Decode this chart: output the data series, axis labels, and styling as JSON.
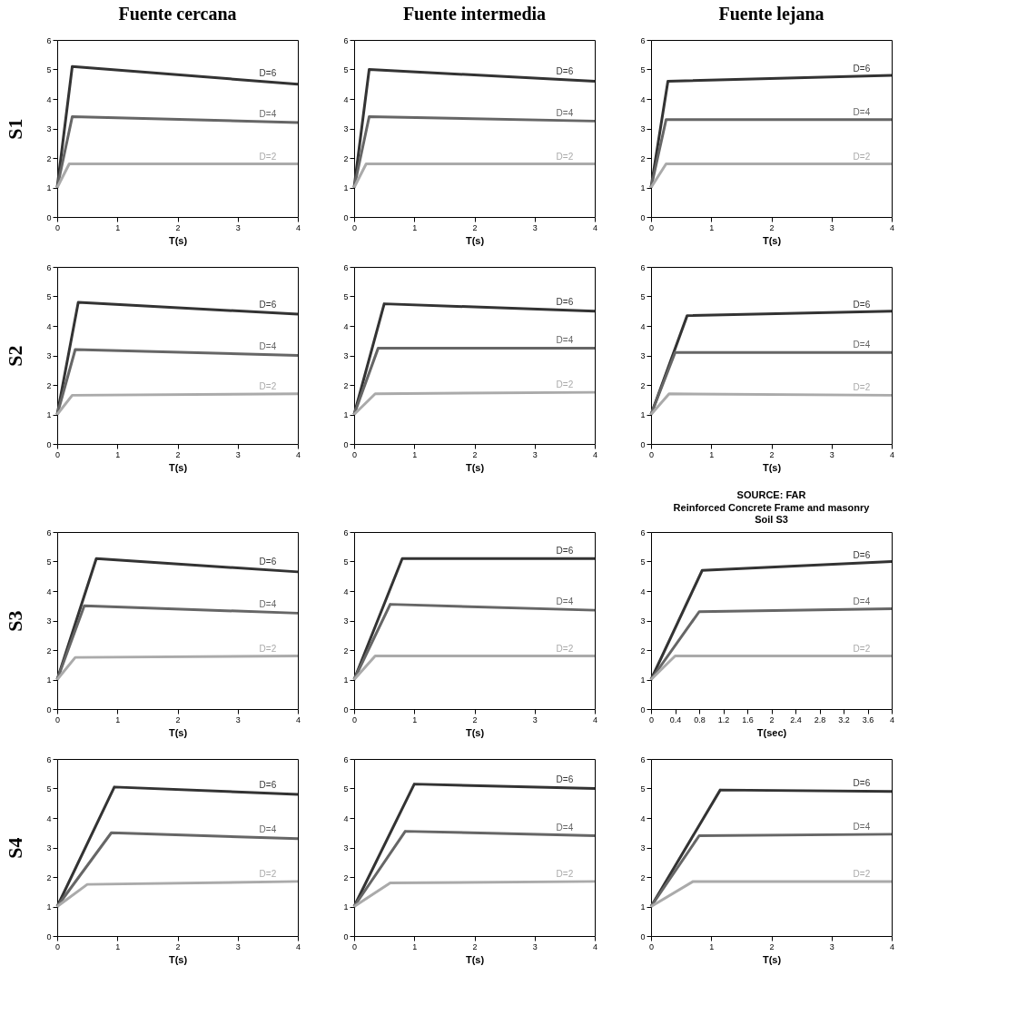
{
  "chart_data": [
    {
      "type": "line",
      "title": "Fuente cercana",
      "ylabel": "S1",
      "xlabel": "T(s)",
      "xlim": [
        0,
        4
      ],
      "ylim": [
        0,
        6
      ],
      "xticks": [
        0,
        1,
        2,
        3,
        4
      ],
      "yticks": [
        0,
        1,
        2,
        3,
        4,
        5,
        6
      ],
      "grid": false,
      "line_style": "solid",
      "series": [
        {
          "name": "D=6",
          "color": "#333333",
          "x": [
            0,
            0.25,
            4
          ],
          "values": [
            1,
            5.1,
            4.5
          ]
        },
        {
          "name": "D=4",
          "color": "#666666",
          "x": [
            0,
            0.25,
            4
          ],
          "values": [
            1,
            3.4,
            3.2
          ]
        },
        {
          "name": "D=2",
          "color": "#aaaaaa",
          "x": [
            0,
            0.2,
            4
          ],
          "values": [
            1,
            1.8,
            1.8
          ]
        }
      ]
    },
    {
      "type": "line",
      "title": "Fuente intermedia",
      "xlabel": "T(s)",
      "xlim": [
        0,
        4
      ],
      "ylim": [
        0,
        6
      ],
      "xticks": [
        0,
        1,
        2,
        3,
        4
      ],
      "yticks": [
        0,
        1,
        2,
        3,
        4,
        5,
        6
      ],
      "grid": false,
      "line_style": "solid",
      "series": [
        {
          "name": "D=6",
          "color": "#333333",
          "x": [
            0,
            0.25,
            4
          ],
          "values": [
            1,
            5.0,
            4.6
          ]
        },
        {
          "name": "D=4",
          "color": "#666666",
          "x": [
            0,
            0.25,
            4
          ],
          "values": [
            1,
            3.4,
            3.25
          ]
        },
        {
          "name": "D=2",
          "color": "#aaaaaa",
          "x": [
            0,
            0.2,
            4
          ],
          "values": [
            1,
            1.8,
            1.8
          ]
        }
      ]
    },
    {
      "type": "line",
      "title": "Fuente lejana",
      "xlabel": "T(s)",
      "xlim": [
        0,
        4
      ],
      "ylim": [
        0,
        6
      ],
      "xticks": [
        0,
        1,
        2,
        3,
        4
      ],
      "yticks": [
        0,
        1,
        2,
        3,
        4,
        5,
        6
      ],
      "grid": false,
      "line_style": "solid",
      "series": [
        {
          "name": "D=6",
          "color": "#333333",
          "x": [
            0,
            0.28,
            4
          ],
          "values": [
            1,
            4.6,
            4.8
          ]
        },
        {
          "name": "D=4",
          "color": "#666666",
          "x": [
            0,
            0.25,
            4
          ],
          "values": [
            1,
            3.3,
            3.3
          ]
        },
        {
          "name": "D=2",
          "color": "#aaaaaa",
          "x": [
            0,
            0.25,
            4
          ],
          "values": [
            1,
            1.8,
            1.8
          ]
        }
      ]
    },
    {
      "type": "line",
      "ylabel": "S2",
      "xlabel": "T(s)",
      "xlim": [
        0,
        4
      ],
      "ylim": [
        0,
        6
      ],
      "xticks": [
        0,
        1,
        2,
        3,
        4
      ],
      "yticks": [
        0,
        1,
        2,
        3,
        4,
        5,
        6
      ],
      "grid": false,
      "line_style": "solid",
      "series": [
        {
          "name": "D=6",
          "color": "#333333",
          "x": [
            0,
            0.35,
            4
          ],
          "values": [
            1,
            4.8,
            4.4
          ]
        },
        {
          "name": "D=4",
          "color": "#666666",
          "x": [
            0,
            0.3,
            4
          ],
          "values": [
            1,
            3.2,
            3.0
          ]
        },
        {
          "name": "D=2",
          "color": "#aaaaaa",
          "x": [
            0,
            0.25,
            4
          ],
          "values": [
            1,
            1.65,
            1.7
          ]
        }
      ]
    },
    {
      "type": "line",
      "xlabel": "T(s)",
      "xlim": [
        0,
        4
      ],
      "ylim": [
        0,
        6
      ],
      "xticks": [
        0,
        1,
        2,
        3,
        4
      ],
      "yticks": [
        0,
        1,
        2,
        3,
        4,
        5,
        6
      ],
      "grid": false,
      "line_style": "solid",
      "series": [
        {
          "name": "D=6",
          "color": "#333333",
          "x": [
            0,
            0.5,
            4
          ],
          "values": [
            1,
            4.75,
            4.5
          ]
        },
        {
          "name": "D=4",
          "color": "#666666",
          "x": [
            0,
            0.4,
            4
          ],
          "values": [
            1,
            3.25,
            3.25
          ]
        },
        {
          "name": "D=2",
          "color": "#aaaaaa",
          "x": [
            0,
            0.35,
            4
          ],
          "values": [
            1,
            1.7,
            1.75
          ]
        }
      ]
    },
    {
      "type": "line",
      "xlabel": "T(s)",
      "xlim": [
        0,
        4
      ],
      "ylim": [
        0,
        6
      ],
      "xticks": [
        0,
        1,
        2,
        3,
        4
      ],
      "yticks": [
        0,
        1,
        2,
        3,
        4,
        5,
        6
      ],
      "grid": false,
      "line_style": "solid",
      "series": [
        {
          "name": "D=6",
          "color": "#333333",
          "x": [
            0,
            0.6,
            4
          ],
          "values": [
            1,
            4.35,
            4.5
          ]
        },
        {
          "name": "D=4",
          "color": "#666666",
          "x": [
            0,
            0.4,
            4
          ],
          "values": [
            1,
            3.1,
            3.1
          ]
        },
        {
          "name": "D=2",
          "color": "#aaaaaa",
          "x": [
            0,
            0.3,
            4
          ],
          "values": [
            1,
            1.7,
            1.65
          ]
        }
      ]
    },
    {
      "type": "line",
      "ylabel": "S3",
      "xlabel": "T(s)",
      "xlim": [
        0,
        4
      ],
      "ylim": [
        0,
        6
      ],
      "xticks": [
        0,
        1,
        2,
        3,
        4
      ],
      "yticks": [
        0,
        1,
        2,
        3,
        4,
        5,
        6
      ],
      "grid": false,
      "line_style": "solid",
      "series": [
        {
          "name": "D=6",
          "color": "#333333",
          "x": [
            0,
            0.65,
            4
          ],
          "values": [
            1,
            5.1,
            4.65
          ]
        },
        {
          "name": "D=4",
          "color": "#666666",
          "x": [
            0,
            0.45,
            4
          ],
          "values": [
            1,
            3.5,
            3.25
          ]
        },
        {
          "name": "D=2",
          "color": "#aaaaaa",
          "x": [
            0,
            0.3,
            4
          ],
          "values": [
            1,
            1.75,
            1.8
          ]
        }
      ]
    },
    {
      "type": "line",
      "xlabel": "T(s)",
      "xlim": [
        0,
        4
      ],
      "ylim": [
        0,
        6
      ],
      "xticks": [
        0,
        1,
        2,
        3,
        4
      ],
      "yticks": [
        0,
        1,
        2,
        3,
        4,
        5,
        6
      ],
      "grid": false,
      "line_style": "solid",
      "series": [
        {
          "name": "D=6",
          "color": "#333333",
          "x": [
            0,
            0.8,
            4
          ],
          "values": [
            1,
            5.1,
            5.1
          ]
        },
        {
          "name": "D=4",
          "color": "#666666",
          "x": [
            0,
            0.6,
            4
          ],
          "values": [
            1,
            3.55,
            3.35
          ]
        },
        {
          "name": "D=2",
          "color": "#aaaaaa",
          "x": [
            0,
            0.35,
            4
          ],
          "values": [
            1,
            1.8,
            1.8
          ]
        }
      ]
    },
    {
      "type": "line",
      "title": "SOURCE: FAR",
      "subtitle": "Reinforced Concrete Frame and masonry\nSoil S3",
      "xlabel": "T(sec)",
      "xlim": [
        0,
        4
      ],
      "ylim": [
        0,
        6
      ],
      "xticks": [
        0,
        0.4,
        0.8,
        1.2,
        1.6,
        2,
        2.4,
        2.8,
        3.2,
        3.6,
        4
      ],
      "yticks": [
        0,
        1,
        2,
        3,
        4,
        5,
        6
      ],
      "grid": false,
      "line_style": "solid",
      "series": [
        {
          "name": "D=6",
          "color": "#333333",
          "x": [
            0,
            0.85,
            4
          ],
          "values": [
            1,
            4.7,
            5.0
          ]
        },
        {
          "name": "D=4",
          "color": "#666666",
          "x": [
            0,
            0.8,
            4
          ],
          "values": [
            1,
            3.3,
            3.4
          ]
        },
        {
          "name": "D=2",
          "color": "#aaaaaa",
          "x": [
            0,
            0.4,
            4
          ],
          "values": [
            1,
            1.8,
            1.8
          ]
        }
      ]
    },
    {
      "type": "line",
      "ylabel": "S4",
      "xlabel": "T(s)",
      "xlim": [
        0,
        4
      ],
      "ylim": [
        0,
        6
      ],
      "xticks": [
        0,
        1,
        2,
        3,
        4
      ],
      "yticks": [
        0,
        1,
        2,
        3,
        4,
        5,
        6
      ],
      "grid": false,
      "line_style": "solid",
      "series": [
        {
          "name": "D=6",
          "color": "#333333",
          "x": [
            0,
            0.95,
            4
          ],
          "values": [
            1,
            5.05,
            4.8
          ]
        },
        {
          "name": "D=4",
          "color": "#666666",
          "x": [
            0,
            0.9,
            4
          ],
          "values": [
            1,
            3.5,
            3.3
          ]
        },
        {
          "name": "D=2",
          "color": "#aaaaaa",
          "x": [
            0,
            0.5,
            4
          ],
          "values": [
            1,
            1.75,
            1.85
          ]
        }
      ]
    },
    {
      "type": "line",
      "xlabel": "T(s)",
      "xlim": [
        0,
        4
      ],
      "ylim": [
        0,
        6
      ],
      "xticks": [
        0,
        1,
        2,
        3,
        4
      ],
      "yticks": [
        0,
        1,
        2,
        3,
        4,
        5,
        6
      ],
      "grid": false,
      "line_style": "solid",
      "series": [
        {
          "name": "D=6",
          "color": "#333333",
          "x": [
            0,
            1.0,
            4
          ],
          "values": [
            1,
            5.15,
            5.0
          ]
        },
        {
          "name": "D=4",
          "color": "#666666",
          "x": [
            0,
            0.85,
            4
          ],
          "values": [
            1,
            3.55,
            3.4
          ]
        },
        {
          "name": "D=2",
          "color": "#aaaaaa",
          "x": [
            0,
            0.6,
            4
          ],
          "values": [
            1,
            1.8,
            1.85
          ]
        }
      ]
    },
    {
      "type": "line",
      "xlabel": "T(s)",
      "xlim": [
        0,
        4
      ],
      "ylim": [
        0,
        6
      ],
      "xticks": [
        0,
        1,
        2,
        3,
        4
      ],
      "yticks": [
        0,
        1,
        2,
        3,
        4,
        5,
        6
      ],
      "grid": false,
      "line_style": "solid",
      "series": [
        {
          "name": "D=6",
          "color": "#333333",
          "x": [
            0,
            1.15,
            4
          ],
          "values": [
            1,
            4.95,
            4.9
          ]
        },
        {
          "name": "D=4",
          "color": "#666666",
          "x": [
            0,
            0.8,
            4
          ],
          "values": [
            1,
            3.4,
            3.45
          ]
        },
        {
          "name": "D=2",
          "color": "#aaaaaa",
          "x": [
            0,
            0.7,
            4
          ],
          "values": [
            1,
            1.85,
            1.85
          ]
        }
      ]
    }
  ]
}
